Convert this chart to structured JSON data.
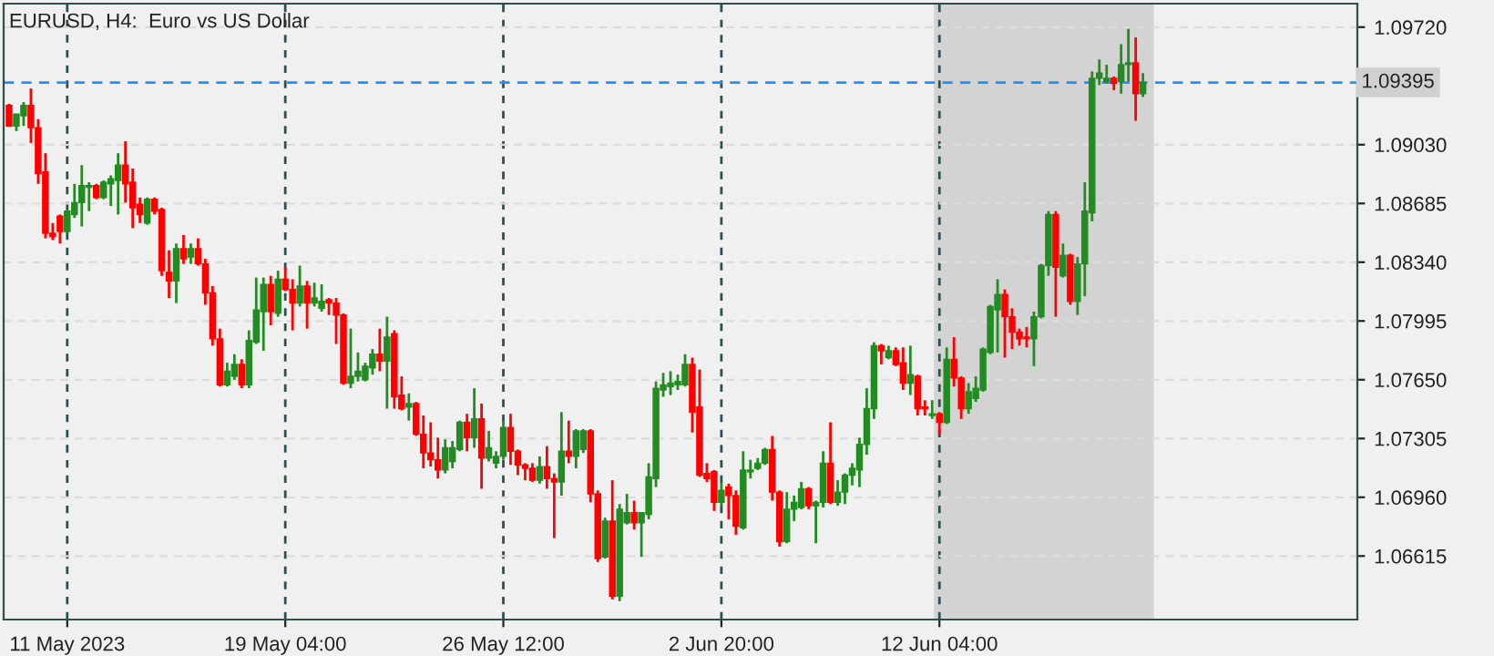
{
  "chart_data": {
    "type": "candlestick",
    "title": "EURUSD, H4:  Euro vs US Dollar",
    "categories": [
      null,
      null,
      null,
      null,
      null,
      null,
      null,
      null,
      "11 May 2023",
      null,
      null,
      null,
      null,
      null,
      null,
      null,
      null,
      null,
      null,
      null,
      null,
      null,
      null,
      null,
      null,
      null,
      null,
      null,
      null,
      null,
      null,
      null,
      null,
      null,
      null,
      null,
      null,
      null,
      "19 May 04:00",
      null,
      null,
      null,
      null,
      null,
      null,
      null,
      null,
      null,
      null,
      null,
      null,
      null,
      null,
      null,
      null,
      null,
      null,
      null,
      null,
      null,
      null,
      null,
      null,
      null,
      null,
      null,
      null,
      null,
      "26 May 12:00",
      null,
      null,
      null,
      null,
      null,
      null,
      null,
      null,
      null,
      null,
      null,
      null,
      null,
      null,
      null,
      null,
      null,
      null,
      null,
      null,
      null,
      null,
      null,
      null,
      null,
      null,
      null,
      null,
      null,
      "2 Jun 20:00",
      null,
      null,
      null,
      null,
      null,
      null,
      null,
      null,
      null,
      null,
      null,
      null,
      null,
      null,
      null,
      null,
      null,
      null,
      null,
      null,
      null,
      null,
      null,
      null,
      null,
      null,
      null,
      null,
      null,
      "12 Jun 04:00",
      null,
      null,
      null,
      null,
      null,
      null,
      null,
      null,
      null,
      null,
      null,
      null,
      null,
      null,
      null,
      null,
      null,
      null,
      null,
      null,
      null,
      null,
      null,
      null,
      null,
      null,
      null,
      null,
      null,
      null,
      null,
      null,
      null,
      null,
      null,
      null,
      null,
      null,
      null,
      null,
      null,
      null,
      null,
      null,
      null,
      null,
      null,
      null,
      null,
      null,
      null,
      null,
      null,
      null,
      null,
      null,
      null
    ],
    "ohlc": [
      [
        1.0926,
        1.0927,
        1.0914,
        1.0914
      ],
      [
        1.0914,
        1.0921,
        1.0911,
        1.0921
      ],
      [
        1.092,
        1.0928,
        1.0914,
        1.0926
      ],
      [
        1.0926,
        1.0936,
        1.0904,
        1.0913
      ],
      [
        1.0913,
        1.0918,
        1.088,
        1.0886
      ],
      [
        1.0887,
        1.0898,
        1.0848,
        1.0851
      ],
      [
        1.0851,
        1.0857,
        1.0847,
        1.0849
      ],
      [
        1.0861,
        1.0862,
        1.0845,
        1.0852
      ],
      [
        1.0852,
        1.0865,
        1.0851,
        1.0864
      ],
      [
        1.0862,
        1.088,
        1.086,
        1.0869
      ],
      [
        1.0869,
        1.0891,
        1.0855,
        1.0879
      ],
      [
        1.0878,
        1.0881,
        1.0864,
        1.0879
      ],
      [
        1.0879,
        1.088,
        1.0871,
        1.0872
      ],
      [
        1.0872,
        1.0882,
        1.0871,
        1.0881
      ],
      [
        1.088,
        1.0885,
        1.0867,
        1.0883
      ],
      [
        1.0882,
        1.0898,
        1.0862,
        1.0891
      ],
      [
        1.0891,
        1.0905,
        1.0869,
        1.088
      ],
      [
        1.0881,
        1.0889,
        1.0854,
        1.0866
      ],
      [
        1.0868,
        1.0872,
        1.0857,
        1.0862
      ],
      [
        1.0857,
        1.0872,
        1.0856,
        1.0871
      ],
      [
        1.0871,
        1.0872,
        1.0862,
        1.0864
      ],
      [
        1.0865,
        1.0866,
        1.0826,
        1.0829
      ],
      [
        1.0828,
        1.0841,
        1.0813,
        1.0823
      ],
      [
        1.0823,
        1.0845,
        1.081,
        1.0842
      ],
      [
        1.0842,
        1.085,
        1.0833,
        1.0836
      ],
      [
        1.0837,
        1.0845,
        1.0833,
        1.0842
      ],
      [
        1.0842,
        1.0848,
        1.0832,
        1.0833
      ],
      [
        1.0833,
        1.0836,
        1.0809,
        1.0816
      ],
      [
        1.0816,
        1.082,
        1.0785,
        1.0789
      ],
      [
        1.0789,
        1.0795,
        1.0761,
        1.0762
      ],
      [
        1.0762,
        1.0775,
        1.0761,
        1.077
      ],
      [
        1.0767,
        1.078,
        1.0765,
        1.0774
      ],
      [
        1.0774,
        1.0777,
        1.076,
        1.0762
      ],
      [
        1.0762,
        1.0794,
        1.076,
        1.0788
      ],
      [
        1.0787,
        1.0825,
        1.0786,
        1.0806
      ],
      [
        1.0805,
        1.0825,
        1.0782,
        1.0821
      ],
      [
        1.0821,
        1.0826,
        1.0797,
        1.0805
      ],
      [
        1.0804,
        1.0829,
        1.0802,
        1.0824
      ],
      [
        1.0824,
        1.0831,
        1.0817,
        1.0818
      ],
      [
        1.0818,
        1.0824,
        1.0794,
        1.081
      ],
      [
        1.081,
        1.0832,
        1.0808,
        1.082
      ],
      [
        1.082,
        1.0823,
        1.0795,
        1.081
      ],
      [
        1.081,
        1.0822,
        1.0808,
        1.0813
      ],
      [
        1.0807,
        1.0821,
        1.0805,
        1.0811
      ],
      [
        1.0812,
        1.0813,
        1.0803,
        1.081
      ],
      [
        1.081,
        1.0813,
        1.0786,
        1.0803
      ],
      [
        1.0803,
        1.0804,
        1.0762,
        1.0763
      ],
      [
        1.0763,
        1.0795,
        1.076,
        1.0767
      ],
      [
        1.0767,
        1.0781,
        1.0764,
        1.077
      ],
      [
        1.0765,
        1.0775,
        1.0764,
        1.0773
      ],
      [
        1.0772,
        1.0783,
        1.0768,
        1.078
      ],
      [
        1.078,
        1.0795,
        1.077,
        1.0776
      ],
      [
        1.0776,
        1.0802,
        1.0748,
        1.079
      ],
      [
        1.0792,
        1.0794,
        1.0748,
        1.0755
      ],
      [
        1.0756,
        1.0767,
        1.0747,
        1.0748
      ],
      [
        1.0749,
        1.0757,
        1.0741,
        1.0751
      ],
      [
        1.0751,
        1.0752,
        1.0732,
        1.0733
      ],
      [
        1.0733,
        1.0744,
        1.0713,
        1.0722
      ],
      [
        1.0722,
        1.074,
        1.0714,
        1.0718
      ],
      [
        1.0718,
        1.0731,
        1.0707,
        1.0712
      ],
      [
        1.0712,
        1.073,
        1.071,
        1.0725
      ],
      [
        1.0717,
        1.0729,
        1.0713,
        1.0725
      ],
      [
        1.0724,
        1.0741,
        1.0723,
        1.074
      ],
      [
        1.074,
        1.0745,
        1.0723,
        1.0731
      ],
      [
        1.0731,
        1.076,
        1.0725,
        1.0742
      ],
      [
        1.0742,
        1.0751,
        1.0701,
        1.0719
      ],
      [
        1.0719,
        1.0735,
        1.0717,
        1.0725
      ],
      [
        1.0716,
        1.0723,
        1.0713,
        1.072
      ],
      [
        1.072,
        1.0741,
        1.0718,
        1.0737
      ],
      [
        1.0737,
        1.0745,
        1.0715,
        1.0723
      ],
      [
        1.0723,
        1.0724,
        1.0709,
        1.0715
      ],
      [
        1.0715,
        1.0716,
        1.0706,
        1.0713
      ],
      [
        1.0713,
        1.0716,
        1.0705,
        1.0706
      ],
      [
        1.0706,
        1.072,
        1.0704,
        1.0714
      ],
      [
        1.0714,
        1.0726,
        1.0701,
        1.0707
      ],
      [
        1.0707,
        1.071,
        1.0672,
        1.0705
      ],
      [
        1.0705,
        1.0746,
        1.0697,
        1.0723
      ],
      [
        1.0723,
        1.0741,
        1.0716,
        1.072
      ],
      [
        1.072,
        1.0736,
        1.0713,
        1.0735
      ],
      [
        1.0724,
        1.0736,
        1.0722,
        1.0735
      ],
      [
        1.0735,
        1.0736,
        1.0693,
        1.0698
      ],
      [
        1.0698,
        1.07,
        1.0658,
        1.066
      ],
      [
        1.0661,
        1.0684,
        1.066,
        1.0682
      ],
      [
        1.0682,
        1.0706,
        1.0636,
        1.0638
      ],
      [
        1.0638,
        1.0692,
        1.0635,
        1.0689
      ],
      [
        1.0681,
        1.0698,
        1.068,
        1.0687
      ],
      [
        1.0687,
        1.0694,
        1.0677,
        1.0681
      ],
      [
        1.0681,
        1.0687,
        1.0661,
        1.0687
      ],
      [
        1.0686,
        1.0716,
        1.0683,
        1.0708
      ],
      [
        1.0707,
        1.0764,
        1.0702,
        1.076
      ],
      [
        1.0759,
        1.0769,
        1.0755,
        1.0762
      ],
      [
        1.0761,
        1.077,
        1.0756,
        1.0763
      ],
      [
        1.0762,
        1.0768,
        1.0759,
        1.0764
      ],
      [
        1.0762,
        1.078,
        1.0761,
        1.0774
      ],
      [
        1.0774,
        1.0778,
        1.0734,
        1.0746
      ],
      [
        1.0749,
        1.0771,
        1.0708,
        1.0709
      ],
      [
        1.071,
        1.0716,
        1.0705,
        1.0707
      ],
      [
        1.0711,
        1.0712,
        1.0688,
        1.0693
      ],
      [
        1.0693,
        1.0705,
        1.0691,
        1.07
      ],
      [
        1.0702,
        1.0704,
        1.0683,
        1.0697
      ],
      [
        1.0697,
        1.07,
        1.0674,
        1.0679
      ],
      [
        1.0678,
        1.0723,
        1.0677,
        1.0712
      ],
      [
        1.0711,
        1.0718,
        1.0707,
        1.0712
      ],
      [
        1.0713,
        1.0719,
        1.0712,
        1.0716
      ],
      [
        1.0716,
        1.0725,
        1.0715,
        1.0724
      ],
      [
        1.0724,
        1.0732,
        1.0694,
        1.0699
      ],
      [
        1.0699,
        1.07,
        1.0667,
        1.067
      ],
      [
        1.067,
        1.0699,
        1.0669,
        1.0689
      ],
      [
        1.0689,
        1.0697,
        1.0682,
        1.0693
      ],
      [
        1.069,
        1.0705,
        1.0689,
        1.0701
      ],
      [
        1.0701,
        1.0702,
        1.0689,
        1.0691
      ],
      [
        1.0691,
        1.0694,
        1.0669,
        1.0693
      ],
      [
        1.0693,
        1.0723,
        1.069,
        1.0716
      ],
      [
        1.0716,
        1.074,
        1.0692,
        1.0693
      ],
      [
        1.0693,
        1.0706,
        1.0691,
        1.0699
      ],
      [
        1.0699,
        1.071,
        1.0692,
        1.0709
      ],
      [
        1.0709,
        1.0716,
        1.0703,
        1.0713
      ],
      [
        1.0712,
        1.0731,
        1.0702,
        1.0727
      ],
      [
        1.0727,
        1.076,
        1.0721,
        1.0748
      ],
      [
        1.0748,
        1.0787,
        1.0742,
        1.0785
      ],
      [
        1.0785,
        1.0786,
        1.0774,
        1.0782
      ],
      [
        1.0778,
        1.0785,
        1.0777,
        1.0782
      ],
      [
        1.0782,
        1.0784,
        1.0773,
        1.0774
      ],
      [
        1.0775,
        1.0784,
        1.0759,
        1.0763
      ],
      [
        1.0763,
        1.0785,
        1.0756,
        1.0768
      ],
      [
        1.0767,
        1.0768,
        1.0744,
        1.0748
      ],
      [
        1.0749,
        1.0753,
        1.0744,
        1.0748
      ],
      [
        1.0744,
        1.0753,
        1.0742,
        1.0745
      ],
      [
        1.0745,
        1.0746,
        1.0733,
        1.074
      ],
      [
        1.074,
        1.0784,
        1.0739,
        1.0777
      ],
      [
        1.0777,
        1.079,
        1.0761,
        1.0766
      ],
      [
        1.0766,
        1.0767,
        1.0742,
        1.0748
      ],
      [
        1.0748,
        1.0763,
        1.0745,
        1.0758
      ],
      [
        1.0754,
        1.0767,
        1.0752,
        1.076
      ],
      [
        1.0759,
        1.0784,
        1.0758,
        1.0783
      ],
      [
        1.0781,
        1.0809,
        1.078,
        1.0808
      ],
      [
        1.0806,
        1.0824,
        1.0781,
        1.0815
      ],
      [
        1.0815,
        1.0818,
        1.0778,
        1.0802
      ],
      [
        1.0802,
        1.0807,
        1.0783,
        1.0793
      ],
      [
        1.0793,
        1.0795,
        1.0785,
        1.0789
      ],
      [
        1.079,
        1.0796,
        1.0784,
        1.0789
      ],
      [
        1.0789,
        1.0805,
        1.0773,
        1.0802
      ],
      [
        1.0802,
        1.0833,
        1.0801,
        1.0832
      ],
      [
        1.0832,
        1.0864,
        1.0826,
        1.0862
      ],
      [
        1.0862,
        1.0864,
        1.0802,
        1.0831
      ],
      [
        1.0826,
        1.0845,
        1.0825,
        1.0838
      ],
      [
        1.0838,
        1.0839,
        1.0809,
        1.0811
      ],
      [
        1.0811,
        1.0837,
        1.0803,
        1.0833
      ],
      [
        1.0833,
        1.0881,
        1.0814,
        1.0864
      ],
      [
        1.0863,
        1.0946,
        1.0858,
        1.0942
      ],
      [
        1.0942,
        1.0953,
        1.0938,
        1.0945
      ],
      [
        1.094,
        1.095,
        1.0939,
        1.0942
      ],
      [
        1.0942,
        1.0943,
        1.0935,
        1.0939
      ],
      [
        1.094,
        1.0962,
        1.0933,
        1.095
      ],
      [
        1.095,
        1.0971,
        1.094,
        1.0951
      ],
      [
        1.0951,
        1.0966,
        1.0917,
        1.0933
      ],
      [
        1.0933,
        1.0945,
        1.0931,
        1.09395
      ],
      null,
      null,
      null,
      null,
      null,
      null,
      null,
      null,
      null,
      null,
      null,
      null,
      null,
      null,
      null,
      null,
      null,
      null,
      null,
      null,
      null,
      null,
      null,
      null,
      null,
      null,
      null,
      null,
      null
    ],
    "colors": [
      "#ff0000",
      "#228b22",
      "#228b22",
      "#ff0000",
      "#ff0000",
      "#ff0000",
      "#ff0000",
      "#ff0000",
      "#228b22",
      "#228b22",
      "#228b22",
      "#228b22",
      "#ff0000",
      "#228b22",
      "#228b22",
      "#228b22",
      "#ff0000",
      "#ff0000",
      "#ff0000",
      "#228b22",
      "#ff0000",
      "#ff0000",
      "#ff0000",
      "#228b22",
      "#ff0000",
      "#228b22",
      "#ff0000",
      "#ff0000",
      "#ff0000",
      "#ff0000",
      "#228b22",
      "#228b22",
      "#ff0000",
      "#228b22",
      "#228b22",
      "#228b22",
      "#ff0000",
      "#228b22",
      "#ff0000",
      "#ff0000",
      "#228b22",
      "#ff0000",
      "#228b22",
      "#228b22",
      "#ff0000",
      "#ff0000",
      "#ff0000",
      "#228b22",
      "#228b22",
      "#228b22",
      "#228b22",
      "#ff0000",
      "#228b22",
      "#ff0000",
      "#ff0000",
      "#228b22",
      "#ff0000",
      "#ff0000",
      "#ff0000",
      "#ff0000",
      "#228b22",
      "#228b22",
      "#228b22",
      "#ff0000",
      "#228b22",
      "#ff0000",
      "#228b22",
      "#228b22",
      "#228b22",
      "#ff0000",
      "#ff0000",
      "#ff0000",
      "#ff0000",
      "#228b22",
      "#ff0000",
      "#ff0000",
      "#228b22",
      "#ff0000",
      "#228b22",
      "#228b22",
      "#ff0000",
      "#ff0000",
      "#228b22",
      "#ff0000",
      "#228b22",
      "#228b22",
      "#ff0000",
      "#228b22",
      "#228b22",
      "#228b22",
      "#228b22",
      "#228b22",
      "#228b22",
      "#228b22",
      "#ff0000",
      "#ff0000",
      "#ff0000",
      "#ff0000",
      "#228b22",
      "#ff0000",
      "#ff0000",
      "#228b22",
      "#228b22",
      "#228b22",
      "#228b22",
      "#ff0000",
      "#ff0000",
      "#228b22",
      "#228b22",
      "#228b22",
      "#ff0000",
      "#228b22",
      "#228b22",
      "#ff0000",
      "#228b22",
      "#228b22",
      "#228b22",
      "#228b22",
      "#228b22",
      "#228b22",
      "#ff0000",
      "#228b22",
      "#ff0000",
      "#ff0000",
      "#228b22",
      "#ff0000",
      "#ff0000",
      "#228b22",
      "#ff0000",
      "#228b22",
      "#ff0000",
      "#ff0000",
      "#228b22",
      "#228b22",
      "#228b22",
      "#228b22",
      "#228b22",
      "#ff0000",
      "#ff0000",
      "#ff0000",
      "#ff0000",
      "#228b22",
      "#228b22",
      "#228b22",
      "#ff0000",
      "#228b22",
      "#ff0000",
      "#228b22",
      "#228b22",
      "#228b22",
      "#228b22",
      "#228b22",
      "#ff0000",
      "#228b22",
      "#228b22",
      "#ff0000",
      "#228b22",
      null,
      null,
      null,
      null,
      null,
      null,
      null,
      null,
      null,
      null,
      null,
      null,
      null,
      null,
      null,
      null,
      null,
      null,
      null,
      null,
      null,
      null,
      null,
      null,
      null,
      null,
      null,
      null,
      null
    ],
    "ylim": [
      1.06242,
      1.09858
    ],
    "yticks": [
      {
        "value": 1.06615,
        "label": "1.06615"
      },
      {
        "value": 1.0696,
        "label": "1.06960"
      },
      {
        "value": 1.07305,
        "label": "1.07305"
      },
      {
        "value": 1.0765,
        "label": "1.07650"
      },
      {
        "value": 1.07995,
        "label": "1.07995"
      },
      {
        "value": 1.0834,
        "label": "1.08340"
      },
      {
        "value": 1.08685,
        "label": "1.08685"
      },
      {
        "value": 1.0903,
        "label": "1.09030"
      },
      {
        "value": 1.0972,
        "label": "1.09720"
      }
    ],
    "ref_lines": [
      {
        "axis": "y",
        "value": 1.09395,
        "label": "1.09395",
        "color": "#1e90ff",
        "line_style": "dashed"
      }
    ],
    "grid": true
  }
}
